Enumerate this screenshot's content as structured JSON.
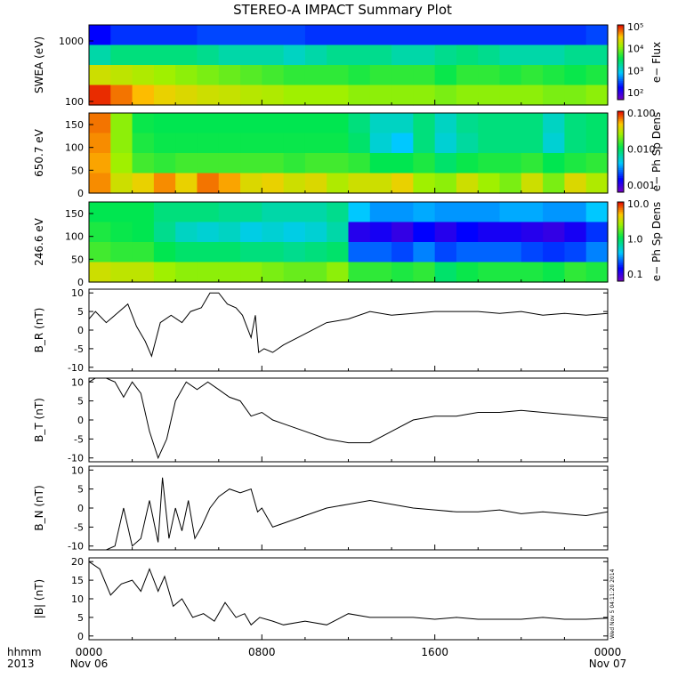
{
  "title": "STEREO-A IMPACT Summary Plot",
  "footer": {
    "time_label": "hhmm",
    "year_label": "2013",
    "date_start": "Nov 06",
    "date_end": "Nov 07"
  },
  "x_ticks": [
    "0000",
    "0800",
    "1600",
    "0000"
  ],
  "side_stamp": "Wed Nov  5 04:11:20 2014",
  "chart_data": [
    {
      "type": "heatmap",
      "ylabel": "SWEA (eV)",
      "y_ticks": [
        "1000",
        "100"
      ],
      "colorbar": {
        "label": "e− Flux",
        "ticks": [
          "10⁵",
          "10⁴",
          "10³",
          "10²"
        ],
        "scale": "log"
      },
      "x_range_hours": [
        0,
        24
      ],
      "rows_high_to_low_energy": [
        [
          15,
          20,
          20,
          20,
          20,
          22,
          22,
          22,
          22,
          22,
          20,
          20,
          20,
          20,
          20,
          20,
          20,
          20,
          20,
          20,
          20,
          20,
          20,
          22
        ],
        [
          45,
          50,
          50,
          50,
          50,
          48,
          45,
          45,
          45,
          42,
          45,
          48,
          48,
          48,
          45,
          45,
          48,
          50,
          48,
          45,
          45,
          45,
          48,
          48
        ],
        [
          78,
          76,
          74,
          72,
          70,
          68,
          66,
          64,
          62,
          60,
          60,
          60,
          58,
          60,
          60,
          60,
          56,
          60,
          60,
          58,
          60,
          58,
          56,
          58
        ],
        [
          98,
          92,
          86,
          82,
          80,
          78,
          77,
          75,
          74,
          72,
          72,
          72,
          70,
          70,
          70,
          70,
          68,
          70,
          70,
          70,
          70,
          68,
          68,
          70
        ]
      ]
    },
    {
      "type": "heatmap",
      "ylabel": "650.7 eV",
      "y_ticks": [
        "150",
        "100",
        "50",
        "0"
      ],
      "colorbar": {
        "label": "e− Ph Sp Dens",
        "ticks": [
          "0.100",
          "0.010",
          "0.001"
        ],
        "scale": "log"
      },
      "x_range_hours": [
        0,
        24
      ],
      "rows_high_to_low_angle": [
        [
          92,
          70,
          56,
          55,
          55,
          55,
          55,
          55,
          55,
          55,
          55,
          55,
          50,
          42,
          42,
          50,
          42,
          48,
          50,
          50,
          50,
          42,
          50,
          52
        ],
        [
          90,
          70,
          58,
          56,
          56,
          56,
          56,
          56,
          56,
          56,
          56,
          56,
          52,
          40,
          35,
          50,
          40,
          46,
          50,
          50,
          50,
          40,
          50,
          52
        ],
        [
          88,
          72,
          62,
          60,
          62,
          62,
          62,
          62,
          62,
          60,
          62,
          62,
          60,
          55,
          55,
          58,
          52,
          56,
          58,
          58,
          60,
          55,
          58,
          60
        ],
        [
          90,
          78,
          82,
          90,
          82,
          92,
          88,
          80,
          82,
          78,
          80,
          74,
          78,
          78,
          82,
          72,
          70,
          78,
          72,
          68,
          78,
          68,
          80,
          74
        ]
      ]
    },
    {
      "type": "heatmap",
      "ylabel": "246.6 eV",
      "y_ticks": [
        "150",
        "100",
        "50",
        "0"
      ],
      "colorbar": {
        "label": "e− Ph Sp Dens",
        "ticks": [
          "10.0",
          "1.0",
          "0.1"
        ],
        "scale": "log"
      },
      "x_range_hours": [
        0,
        24
      ],
      "rows_high_to_low_angle": [
        [
          55,
          55,
          55,
          50,
          50,
          50,
          48,
          48,
          45,
          45,
          45,
          48,
          35,
          30,
          30,
          32,
          30,
          30,
          30,
          32,
          32,
          30,
          30,
          35
        ],
        [
          58,
          56,
          55,
          48,
          42,
          40,
          42,
          38,
          40,
          38,
          40,
          45,
          10,
          12,
          8,
          15,
          10,
          15,
          12,
          12,
          10,
          8,
          12,
          20
        ],
        [
          62,
          60,
          60,
          55,
          52,
          52,
          52,
          50,
          50,
          48,
          50,
          52,
          25,
          25,
          22,
          28,
          22,
          25,
          25,
          25,
          22,
          20,
          22,
          28
        ],
        [
          78,
          76,
          76,
          72,
          70,
          70,
          70,
          70,
          68,
          66,
          66,
          70,
          60,
          60,
          58,
          60,
          52,
          56,
          58,
          58,
          58,
          56,
          60,
          58
        ]
      ]
    },
    {
      "type": "line",
      "ylabel": "B_R (nT)",
      "ylim": [
        -11,
        11
      ],
      "y_ticks": [
        10,
        5,
        0,
        -5,
        -10
      ],
      "x_hours": [
        0,
        0.3,
        0.8,
        1.2,
        1.8,
        2.2,
        2.6,
        2.9,
        3.3,
        3.8,
        4.3,
        4.7,
        5.2,
        5.6,
        6.0,
        6.4,
        6.8,
        7.1,
        7.3,
        7.5,
        7.7,
        7.85,
        8.1,
        8.5,
        9,
        10,
        11,
        12,
        13,
        14,
        15,
        16,
        17,
        18,
        19,
        20,
        21,
        22,
        23,
        24
      ],
      "y": [
        3,
        5,
        2,
        4,
        7,
        1,
        -3,
        -7,
        2,
        4,
        2,
        5,
        6,
        10,
        10,
        7,
        6,
        4,
        1,
        -2,
        4,
        -6,
        -5,
        -6,
        -4,
        -1,
        2,
        3,
        5,
        4,
        4.5,
        5,
        5,
        5,
        4.5,
        5,
        4,
        4.5,
        4,
        4.5
      ]
    },
    {
      "type": "line",
      "ylabel": "B_T (nT)",
      "ylim": [
        -11,
        11
      ],
      "y_ticks": [
        10,
        5,
        0,
        -5,
        -10
      ],
      "x_hours": [
        0,
        0.3,
        0.8,
        1.2,
        1.6,
        2.0,
        2.4,
        2.8,
        3.2,
        3.6,
        4.0,
        4.5,
        5.0,
        5.5,
        6.0,
        6.5,
        7.0,
        7.5,
        8.0,
        8.5,
        9,
        10,
        11,
        12,
        13,
        14,
        15,
        16,
        17,
        18,
        19,
        20,
        21,
        22,
        23,
        24
      ],
      "y": [
        10,
        11,
        11,
        10,
        6,
        10,
        7,
        -3,
        -10,
        -5,
        5,
        10,
        8,
        10,
        8,
        6,
        5,
        1,
        2,
        0,
        -1,
        -3,
        -5,
        -6,
        -6,
        -3,
        0,
        1,
        1,
        2,
        2,
        2.5,
        2,
        1.5,
        1,
        0.5
      ]
    },
    {
      "type": "line",
      "ylabel": "B_N (nT)",
      "ylim": [
        -11,
        11
      ],
      "y_ticks": [
        10,
        5,
        0,
        -5,
        -10
      ],
      "x_hours": [
        0,
        0.8,
        1.2,
        1.6,
        2.0,
        2.4,
        2.8,
        3.2,
        3.4,
        3.7,
        4.0,
        4.3,
        4.6,
        4.9,
        5.2,
        5.6,
        6.0,
        6.5,
        7.0,
        7.5,
        7.8,
        8.0,
        8.5,
        9,
        10,
        11,
        12,
        13,
        14,
        15,
        16,
        17,
        18,
        19,
        20,
        21,
        22,
        23,
        24
      ],
      "y": [
        -11,
        -11,
        -10,
        0,
        -10,
        -8,
        2,
        -9,
        8,
        -8,
        0,
        -6,
        2,
        -8,
        -5,
        0,
        3,
        5,
        4,
        5,
        -1,
        0,
        -5,
        -4,
        -2,
        0,
        1,
        2,
        1,
        0,
        -0.5,
        -1,
        -1,
        -0.5,
        -1.5,
        -1,
        -1.5,
        -2,
        -1
      ]
    },
    {
      "type": "line",
      "ylabel": "|B| (nT)",
      "ylim": [
        -1,
        21
      ],
      "y_ticks": [
        20,
        15,
        10,
        5,
        0
      ],
      "x_hours": [
        0,
        0.5,
        1.0,
        1.5,
        2.0,
        2.4,
        2.8,
        3.2,
        3.5,
        3.9,
        4.3,
        4.8,
        5.3,
        5.8,
        6.3,
        6.8,
        7.2,
        7.5,
        7.9,
        8.5,
        9,
        10,
        11,
        12,
        13,
        14,
        15,
        16,
        17,
        18,
        19,
        20,
        21,
        22,
        23,
        24
      ],
      "y": [
        20,
        18,
        11,
        14,
        15,
        12,
        18,
        12,
        16,
        8,
        10,
        5,
        6,
        4,
        9,
        5,
        6,
        3,
        5,
        4,
        3,
        4,
        3,
        6,
        5,
        5,
        5,
        4.5,
        5,
        4.5,
        4.5,
        4.5,
        5,
        4.5,
        4.5,
        4.8
      ]
    }
  ]
}
